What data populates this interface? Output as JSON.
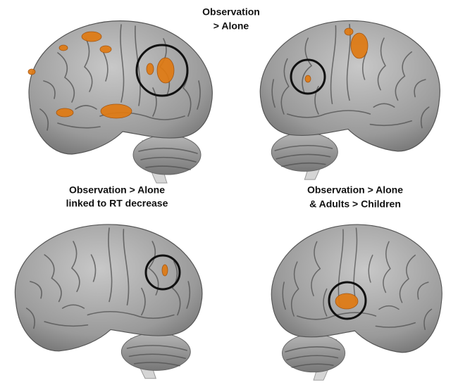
{
  "panels": [
    {
      "label_lines": [
        "Observation",
        "> Alone"
      ]
    },
    {
      "label_lines": [
        "Observation > Alone",
        "linked to RT decrease"
      ]
    },
    {
      "label_lines": [
        "Observation > Alone",
        "& Adults > Children"
      ]
    }
  ]
}
